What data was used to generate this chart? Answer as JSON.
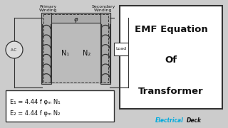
{
  "bg_color": "#cccccc",
  "title_box_color": "#ffffff",
  "title_lines": [
    "EMF Equation",
    "Of",
    "Transformer"
  ],
  "eq1": "E₁ = 4.44 f φₘ N₁",
  "eq2": "E₂ = 4.44 f φₘ N₂",
  "label_primary": "Primary\nWinding",
  "label_secondary": "Secondary\nWinding",
  "label_N1": "N₁",
  "label_N2": "N₂",
  "label_ac": "A.C",
  "label_load": "Load",
  "label_phi": "φ",
  "brand_color": "#00aadd",
  "core_color": "#aaaaaa",
  "core_inner_color": "#bbbbbb",
  "border_color": "#333333",
  "text_color": "#111111",
  "eq_box_color": "#ffffff",
  "white": "#ffffff"
}
